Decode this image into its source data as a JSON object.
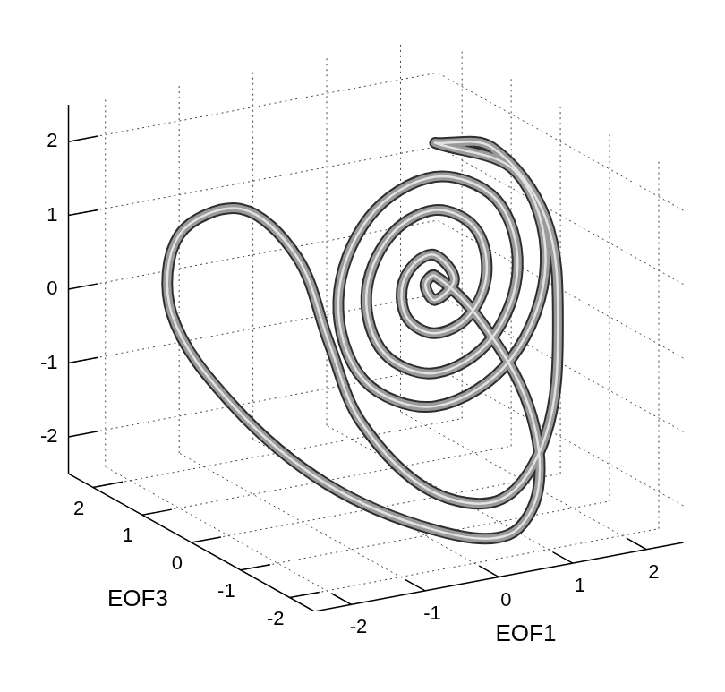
{
  "chart_data": {
    "type": "line3d",
    "x_label": "EOF1",
    "y_label": "EOF3",
    "xlim": [
      -2.5,
      2.5
    ],
    "xticks": [
      -2,
      -1,
      0,
      1,
      2
    ],
    "ylim": [
      -2.5,
      2.5
    ],
    "yticks": [
      -2,
      -1,
      0,
      1,
      2
    ],
    "zlim": [
      -2.5,
      2.5
    ],
    "zticks": [
      -2,
      -1,
      0,
      1,
      2
    ],
    "grid": true,
    "color": "#9a9a9a",
    "x": [
      0.8,
      1.9,
      2.3,
      1.83,
      0.8,
      -0.16,
      -0.51,
      -0.09,
      0.8,
      1.63,
      1.92,
      1.56,
      0.8,
      0.11,
      -0.13,
      0.18,
      0.8,
      1.34,
      1.5,
      1.25,
      0.8,
      0.44,
      0.35,
      0.53,
      0.8,
      1.06,
      0.8,
      0.67,
      0.8,
      1.1,
      1.4,
      1.2,
      0.6,
      -0.2,
      -1.0,
      -1.6,
      -1.9,
      -1.6,
      -0.9,
      -0.4,
      -0.3,
      -0.2,
      0.2,
      0.9,
      1.7,
      2.2,
      2.3,
      1.7,
      0.8
    ],
    "y": [
      0,
      0,
      0,
      0,
      0,
      0,
      0,
      0,
      0,
      0,
      0,
      0,
      0,
      0,
      0,
      0,
      0,
      0,
      0,
      0,
      0,
      0,
      0,
      0,
      0,
      0,
      0,
      0,
      0,
      -0.5,
      -1.0,
      -1.5,
      -1.8,
      -1.5,
      -0.5,
      0.5,
      1.3,
      1.6,
      1.4,
      1.0,
      0.5,
      0.0,
      -0.8,
      -1.2,
      -0.9,
      -0.4,
      0.0,
      0.2,
      0.0
    ],
    "z": [
      2.3,
      1.7,
      0.4,
      -0.82,
      -1.27,
      -0.74,
      0.4,
      1.46,
      1.84,
      1.38,
      0.4,
      -0.5,
      -0.82,
      -0.42,
      0.4,
      1.14,
      1.39,
      1.05,
      0.4,
      -0.14,
      -0.28,
      -0.03,
      0.4,
      0.72,
      0.78,
      0.4,
      0.17,
      0.4,
      0.5,
      0.0,
      -1.0,
      -1.9,
      -2.3,
      -2.2,
      -1.8,
      -1.0,
      0.0,
      0.9,
      1.2,
      0.6,
      -0.4,
      -1.3,
      -2.0,
      -2.1,
      -1.5,
      -0.3,
      1.0,
      2.0,
      2.3
    ]
  }
}
